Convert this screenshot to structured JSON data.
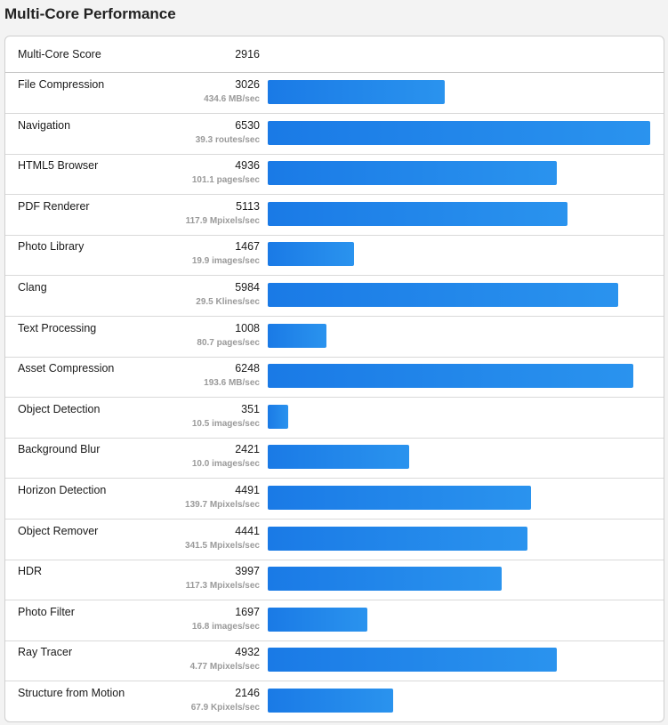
{
  "title": "Multi-Core Performance",
  "summary": {
    "label": "Multi-Core Score",
    "score": "2916"
  },
  "accent_color": "#1f86ea",
  "chart_data": {
    "type": "bar",
    "orientation": "horizontal",
    "title": "Multi-Core Performance",
    "xlim": [
      0,
      6530
    ],
    "categories": [
      "File Compression",
      "Navigation",
      "HTML5 Browser",
      "PDF Renderer",
      "Photo Library",
      "Clang",
      "Text Processing",
      "Asset Compression",
      "Object Detection",
      "Background Blur",
      "Horizon Detection",
      "Object Remover",
      "HDR",
      "Photo Filter",
      "Ray Tracer",
      "Structure from Motion"
    ],
    "values": [
      3026,
      6530,
      4936,
      5113,
      1467,
      5984,
      1008,
      6248,
      351,
      2421,
      4491,
      4441,
      3997,
      1697,
      4932,
      2146
    ],
    "rates": [
      "434.6 MB/sec",
      "39.3 routes/sec",
      "101.1 pages/sec",
      "117.9 Mpixels/sec",
      "19.9 images/sec",
      "29.5 Klines/sec",
      "80.7 pages/sec",
      "193.6 MB/sec",
      "10.5 images/sec",
      "10.0 images/sec",
      "139.7 Mpixels/sec",
      "341.5 Mpixels/sec",
      "117.3 Mpixels/sec",
      "16.8 images/sec",
      "4.77 Mpixels/sec",
      "67.9 Kpixels/sec"
    ]
  }
}
